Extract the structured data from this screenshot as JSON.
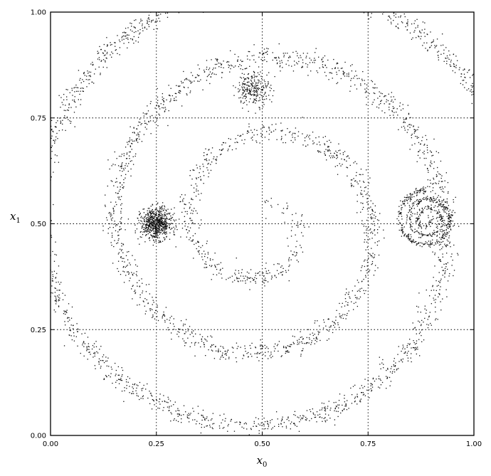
{
  "chart_data": {
    "type": "scatter",
    "title": "",
    "xlabel": "x",
    "xlabel_sub": "0",
    "ylabel": "x",
    "ylabel_sub": "1",
    "xlim": [
      0.0,
      1.0
    ],
    "ylim": [
      0.0,
      1.0
    ],
    "xticks": [
      "0.00",
      "0.25",
      "0.50",
      "0.75",
      "1.00"
    ],
    "yticks": [
      "0.00",
      "0.25",
      "0.50",
      "0.75",
      "1.00"
    ],
    "grid": true,
    "legend": "none",
    "point_color": "#111111",
    "components": [
      {
        "kind": "spiral",
        "center": [
          0.5,
          0.5
        ],
        "r_start": 0.04,
        "r_end": 0.6,
        "turns": 3.2,
        "noise": 0.012,
        "n": 3800
      },
      {
        "kind": "cluster",
        "center": [
          0.25,
          0.5
        ],
        "spread": 0.018,
        "n": 700
      },
      {
        "kind": "cluster",
        "center": [
          0.48,
          0.82
        ],
        "spread": 0.02,
        "n": 250
      },
      {
        "kind": "spiral",
        "center": [
          0.89,
          0.51
        ],
        "r_start": 0.005,
        "r_end": 0.07,
        "turns": 3.0,
        "noise": 0.004,
        "n": 550
      }
    ]
  }
}
